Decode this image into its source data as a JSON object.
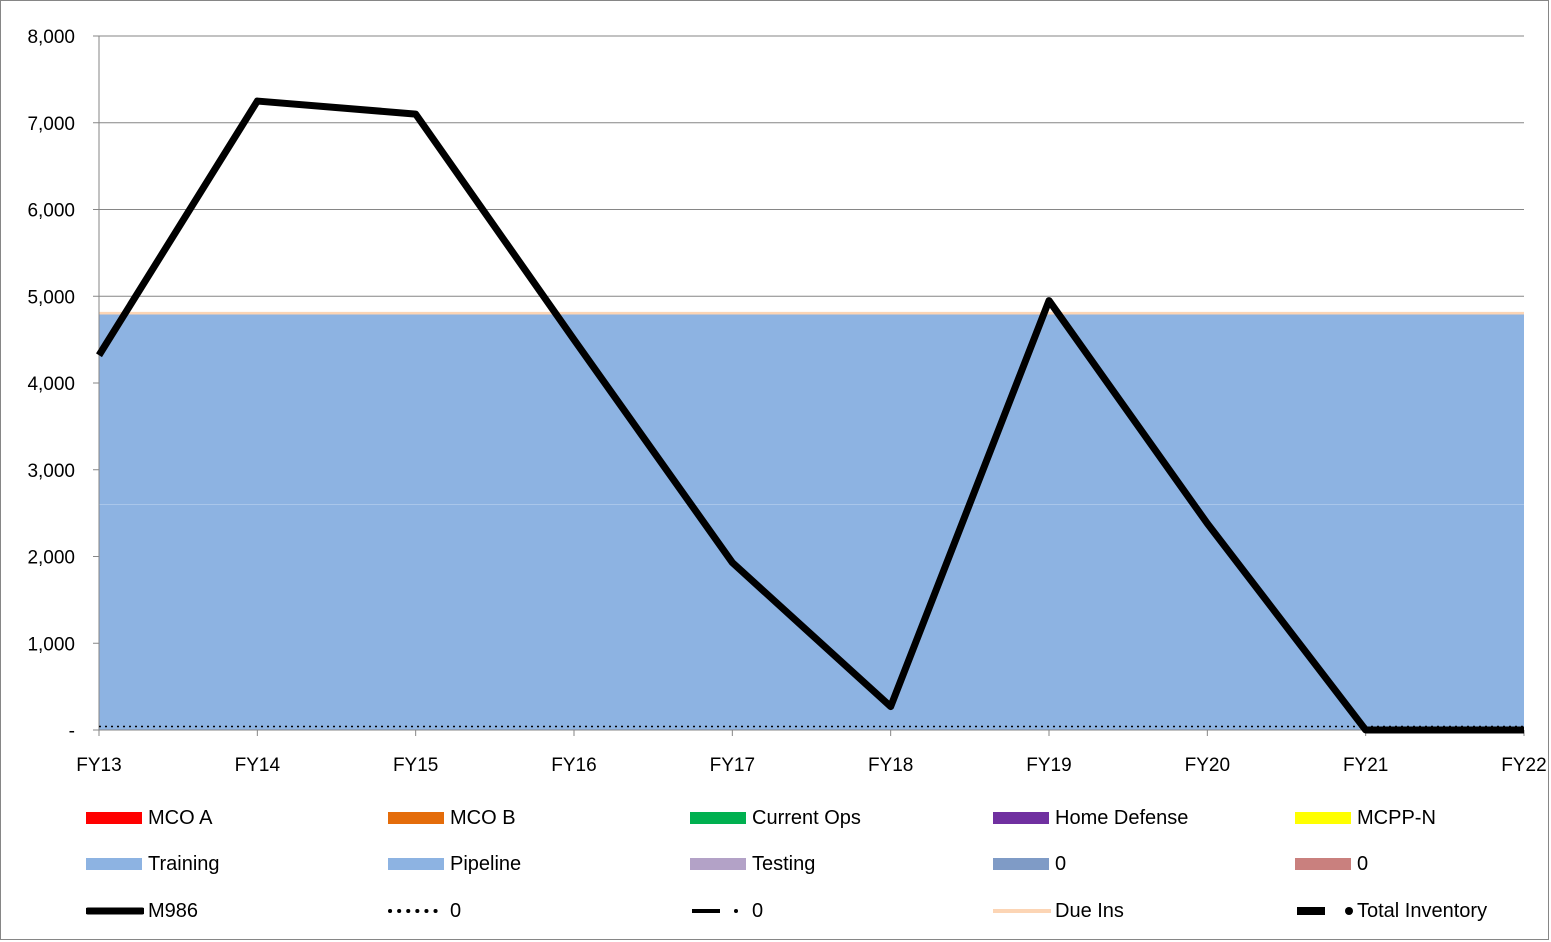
{
  "chart_data": {
    "type": "area",
    "categories": [
      "FY13",
      "FY14",
      "FY15",
      "FY16",
      "FY17",
      "FY18",
      "FY19",
      "FY20",
      "FY21",
      "FY22"
    ],
    "ylim": [
      0,
      8000
    ],
    "y_ticks": [
      {
        "value": 0,
        "label": "-"
      },
      {
        "value": 1000,
        "label": "1,000"
      },
      {
        "value": 2000,
        "label": "2,000"
      },
      {
        "value": 3000,
        "label": "3,000"
      },
      {
        "value": 4000,
        "label": "4,000"
      },
      {
        "value": 5000,
        "label": "5,000"
      },
      {
        "value": 6000,
        "label": "6,000"
      },
      {
        "value": 7000,
        "label": "7,000"
      },
      {
        "value": 8000,
        "label": "8,000"
      }
    ],
    "grid": true,
    "stacked_areas": [
      {
        "name": "Training",
        "color": "#8db3e2",
        "values": [
          2600,
          2600,
          2600,
          2600,
          2600,
          2600,
          2600,
          2600,
          2600,
          2600
        ]
      },
      {
        "name": "Pipeline",
        "color": "#8db3e2",
        "values": [
          2190,
          2190,
          2190,
          2190,
          2190,
          2190,
          2190,
          2190,
          2190,
          2190
        ]
      },
      {
        "name": "Due Ins",
        "color": "#fcd5b5",
        "values": [
          30,
          30,
          30,
          30,
          30,
          30,
          30,
          30,
          30,
          30
        ]
      }
    ],
    "lines": [
      {
        "name": "M986",
        "color": "#000000",
        "style": "solid",
        "values": [
          4320,
          7250,
          7100,
          4500,
          1930,
          270,
          4950,
          2380,
          0,
          0
        ]
      },
      {
        "name": "0",
        "color": "#000000",
        "style": "dotted",
        "values": [
          40,
          40,
          40,
          40,
          40,
          40,
          40,
          40,
          40,
          40
        ]
      },
      {
        "name": "Total Inventory",
        "color": "#000000",
        "style": "dashed",
        "values": [
          null,
          null,
          null,
          null,
          null,
          null,
          null,
          null,
          0,
          0
        ]
      }
    ],
    "legend": {
      "placement": "bottom",
      "items": [
        {
          "label": "MCO A",
          "color": "#ff0000",
          "kind": "area"
        },
        {
          "label": "MCO B",
          "color": "#e46c0a",
          "kind": "area"
        },
        {
          "label": "Current Ops",
          "color": "#00b050",
          "kind": "area"
        },
        {
          "label": "Home Defense",
          "color": "#7030a0",
          "kind": "area"
        },
        {
          "label": "MCPP-N",
          "color": "#ffff00",
          "kind": "area"
        },
        {
          "label": "Training",
          "color": "#8db3e2",
          "kind": "area"
        },
        {
          "label": "Pipeline",
          "color": "#8db3e2",
          "kind": "area"
        },
        {
          "label": "Testing",
          "color": "#b3a2c7",
          "kind": "area"
        },
        {
          "label": "0",
          "color": "#7f9bc6",
          "kind": "area"
        },
        {
          "label": "0",
          "color": "#c9807e",
          "kind": "area"
        },
        {
          "label": "M986",
          "color": "#000000",
          "kind": "line-solid"
        },
        {
          "label": "0",
          "color": "#000000",
          "kind": "line-dotted"
        },
        {
          "label": "0",
          "color": "#000000",
          "kind": "line-dashdot"
        },
        {
          "label": "Due Ins",
          "color": "#fcd5b5",
          "kind": "line-light"
        },
        {
          "label": "Total Inventory",
          "color": "#000000",
          "kind": "line-dashed"
        }
      ]
    }
  }
}
